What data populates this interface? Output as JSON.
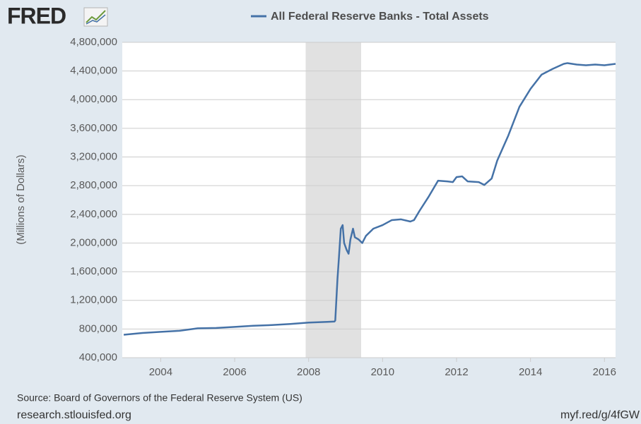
{
  "header": {
    "logo": "FRED"
  },
  "chart_data": {
    "type": "line",
    "y_label": "(Millions of Dollars)",
    "x": [
      2003.0,
      2003.5,
      2004.0,
      2004.5,
      2005.0,
      2005.5,
      2006.0,
      2006.5,
      2007.0,
      2007.5,
      2008.0,
      2008.5,
      2008.7,
      2008.72,
      2008.78,
      2008.82,
      2008.87,
      2008.92,
      2008.96,
      2009.03,
      2009.08,
      2009.13,
      2009.2,
      2009.25,
      2009.35,
      2009.45,
      2009.55,
      2009.75,
      2010.0,
      2010.25,
      2010.5,
      2010.75,
      2010.85,
      2011.0,
      2011.25,
      2011.5,
      2011.75,
      2011.9,
      2012.0,
      2012.15,
      2012.3,
      2012.6,
      2012.75,
      2012.95,
      2013.1,
      2013.4,
      2013.7,
      2014.0,
      2014.3,
      2014.6,
      2014.9,
      2015.0,
      2015.25,
      2015.5,
      2015.75,
      2016.0,
      2016.3
    ],
    "series": [
      {
        "name": "All Federal Reserve Banks - Total Assets",
        "color": "#4572a7",
        "values": [
          720000,
          745000,
          760000,
          775000,
          810000,
          815000,
          830000,
          845000,
          855000,
          870000,
          890000,
          900000,
          905000,
          920000,
          1500000,
          1800000,
          2200000,
          2250000,
          2000000,
          1900000,
          1850000,
          2050000,
          2200000,
          2080000,
          2050000,
          2000000,
          2100000,
          2200000,
          2250000,
          2320000,
          2330000,
          2300000,
          2320000,
          2450000,
          2650000,
          2870000,
          2860000,
          2850000,
          2920000,
          2930000,
          2860000,
          2850000,
          2810000,
          2900000,
          3150000,
          3500000,
          3900000,
          4150000,
          4350000,
          4430000,
          4500000,
          4510000,
          4490000,
          4480000,
          4490000,
          4480000,
          4500000
        ]
      }
    ],
    "xlim": [
      2002.96,
      2016.3
    ],
    "xticks": [
      2004,
      2006,
      2008,
      2010,
      2012,
      2014,
      2016
    ],
    "ylim": [
      400000,
      4800000
    ],
    "yticks": [
      {
        "value": 400000,
        "label": "400,000"
      },
      {
        "value": 800000,
        "label": "800,000"
      },
      {
        "value": 1200000,
        "label": "1,200,000"
      },
      {
        "value": 1600000,
        "label": "1,600,000"
      },
      {
        "value": 2000000,
        "label": "2,000,000"
      },
      {
        "value": 2400000,
        "label": "2,400,000"
      },
      {
        "value": 2800000,
        "label": "2,800,000"
      },
      {
        "value": 3200000,
        "label": "3,200,000"
      },
      {
        "value": 3600000,
        "label": "3,600,000"
      },
      {
        "value": 4000000,
        "label": "4,000,000"
      },
      {
        "value": 4400000,
        "label": "4,400,000"
      },
      {
        "value": 4800000,
        "label": "4,800,000"
      }
    ],
    "shaded_ranges": [
      [
        2007.92,
        2009.42
      ]
    ],
    "shade_color": "#e1e1e1",
    "grid": true
  },
  "footer": {
    "source": "Source: Board of Governors of the Federal Reserve System (US)",
    "site": "research.stlouisfed.org",
    "link": "myf.red/g/4fGW"
  }
}
